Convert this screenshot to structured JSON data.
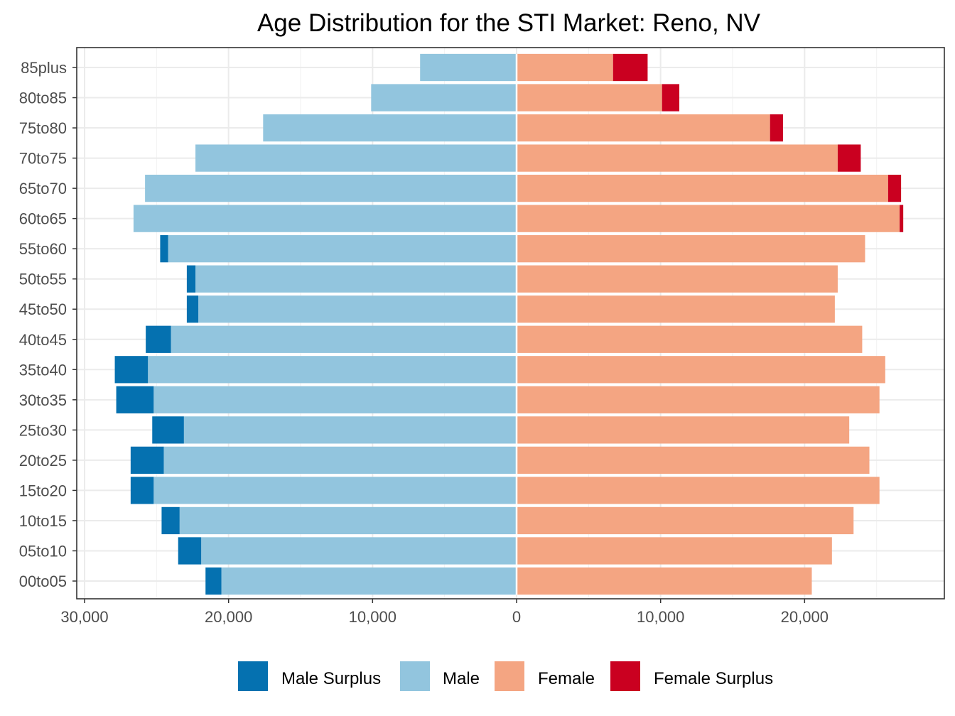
{
  "chart_data": {
    "type": "bar",
    "orientation": "horizontal",
    "title": "Age Distribution for the STI Market: Reno, NV",
    "xlabel": "",
    "ylabel": "",
    "xlim": [
      -30000,
      30000
    ],
    "x_ticks": [
      -30000,
      -20000,
      -10000,
      0,
      10000,
      20000
    ],
    "x_tick_labels": [
      "30,000",
      "20,000",
      "10,000",
      "0",
      "10,000",
      "20,000"
    ],
    "grid": true,
    "legend_position": "bottom",
    "categories": [
      "00to05",
      "05to10",
      "10to15",
      "15to20",
      "20to25",
      "25to30",
      "30to35",
      "35to40",
      "40to45",
      "45to50",
      "50to55",
      "55to60",
      "60to65",
      "65to70",
      "70to75",
      "75to80",
      "80to85",
      "85plus"
    ],
    "series": [
      {
        "name": "Male Surplus",
        "color": "#0571b0",
        "values": [
          1100,
          1600,
          1250,
          1600,
          2300,
          2200,
          2600,
          2300,
          1750,
          800,
          600,
          550,
          0,
          0,
          0,
          0,
          0,
          0
        ]
      },
      {
        "name": "Male",
        "color": "#92c5de",
        "values": [
          20500,
          21900,
          23400,
          25200,
          24500,
          23100,
          25200,
          25600,
          24000,
          22100,
          22300,
          24200,
          26600,
          25800,
          22300,
          17600,
          10100,
          6700
        ]
      },
      {
        "name": "Female",
        "color": "#f4a582",
        "values": [
          20500,
          21900,
          23400,
          25200,
          24500,
          23100,
          25200,
          25600,
          24000,
          22100,
          22300,
          24200,
          26600,
          25800,
          22300,
          17600,
          10100,
          6700
        ]
      },
      {
        "name": "Female Surplus",
        "color": "#ca0020",
        "values": [
          0,
          0,
          0,
          0,
          0,
          0,
          0,
          0,
          0,
          0,
          0,
          0,
          250,
          900,
          1600,
          900,
          1200,
          2400
        ]
      }
    ]
  }
}
